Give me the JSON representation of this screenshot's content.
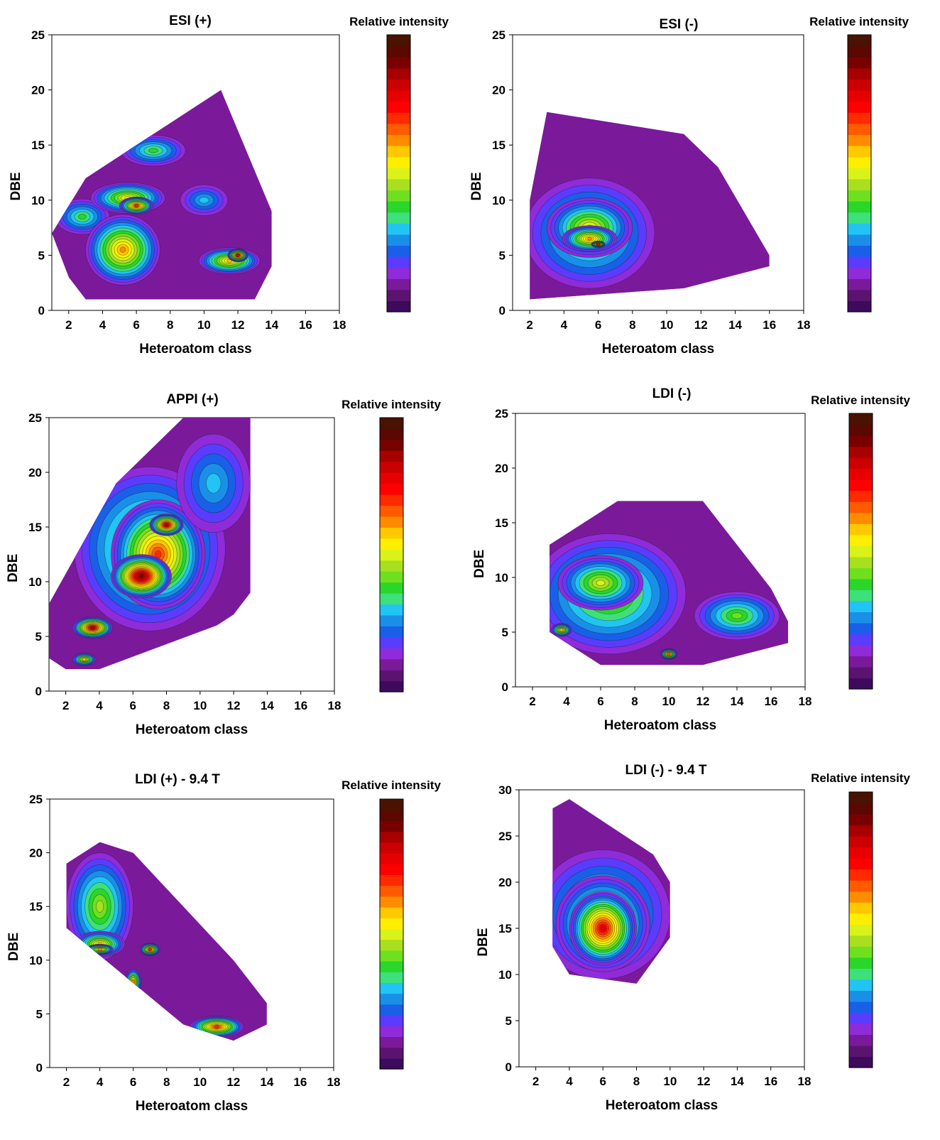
{
  "figure": {
    "colorbar_colors": [
      "#3d0a5c",
      "#5a1470",
      "#7a1a9a",
      "#8f2bd9",
      "#5a3cff",
      "#1a5fe8",
      "#1a8fe8",
      "#21c4f2",
      "#3de07a",
      "#2ad62a",
      "#6ee01f",
      "#a8e01f",
      "#d9f21a",
      "#ffee00",
      "#ffc800",
      "#ff8c00",
      "#ff5a00",
      "#ff2a00",
      "#ff0000",
      "#e80000",
      "#cc0000",
      "#a80000",
      "#7a0000",
      "#5a0800",
      "#4a1200"
    ]
  },
  "chart_data": [
    {
      "type": "heatmap",
      "title": "ESI (+)",
      "xlabel": "Heteroatom class",
      "ylabel": "DBE",
      "colorbar_label": "Relative intensity",
      "xlim": [
        1,
        18
      ],
      "ylim": [
        0,
        25
      ],
      "xticks": [
        "2",
        "4",
        "6",
        "8",
        "10",
        "12",
        "14",
        "16",
        "18"
      ],
      "yticks": [
        "0",
        "5",
        "10",
        "15",
        "20",
        "25"
      ],
      "region": [
        [
          1,
          7
        ],
        [
          3,
          12
        ],
        [
          7,
          16
        ],
        [
          11,
          20
        ],
        [
          14,
          9
        ],
        [
          14,
          4
        ],
        [
          13,
          1
        ],
        [
          3,
          1
        ],
        [
          2,
          3
        ]
      ],
      "blobs": [
        {
          "x": 2.8,
          "y": 8.5,
          "rx": 1.6,
          "ry": 1.6,
          "peak": 9
        },
        {
          "x": 5.2,
          "y": 5.5,
          "rx": 2.2,
          "ry": 3.2,
          "peak": 15
        },
        {
          "x": 5.5,
          "y": 10.2,
          "rx": 2.2,
          "ry": 1.4,
          "peak": 13
        },
        {
          "x": 6.0,
          "y": 9.5,
          "rx": 1.0,
          "ry": 0.8,
          "peak": 17
        },
        {
          "x": 7.0,
          "y": 14.5,
          "rx": 1.9,
          "ry": 1.4,
          "peak": 9
        },
        {
          "x": 10.0,
          "y": 10.0,
          "rx": 1.4,
          "ry": 1.4,
          "peak": 7
        },
        {
          "x": 11.5,
          "y": 4.5,
          "rx": 1.8,
          "ry": 1.2,
          "peak": 14
        },
        {
          "x": 12.0,
          "y": 5.0,
          "rx": 0.6,
          "ry": 0.6,
          "peak": 19
        }
      ]
    },
    {
      "type": "heatmap",
      "title": "ESI (-)",
      "xlabel": "Heteroatom class",
      "ylabel": "DBE",
      "colorbar_label": "Relative intensity",
      "xlim": [
        1,
        18
      ],
      "ylim": [
        0,
        25
      ],
      "xticks": [
        "2",
        "4",
        "6",
        "8",
        "10",
        "12",
        "14",
        "16",
        "18"
      ],
      "yticks": [
        "0",
        "5",
        "10",
        "15",
        "20",
        "25"
      ],
      "region": [
        [
          2,
          10
        ],
        [
          3,
          18
        ],
        [
          11,
          16
        ],
        [
          13,
          13
        ],
        [
          16,
          5
        ],
        [
          16,
          4
        ],
        [
          11,
          2
        ],
        [
          2,
          1
        ]
      ],
      "blobs": [
        {
          "x": 5.5,
          "y": 7.0,
          "rx": 3.8,
          "ry": 5.0,
          "peak": 10
        },
        {
          "x": 5.5,
          "y": 7.5,
          "rx": 2.5,
          "ry": 2.7,
          "peak": 13
        },
        {
          "x": 5.5,
          "y": 6.5,
          "rx": 1.6,
          "ry": 1.2,
          "peak": 15
        },
        {
          "x": 6.0,
          "y": 6.0,
          "rx": 0.4,
          "ry": 0.3,
          "peak": 19
        }
      ]
    },
    {
      "type": "heatmap",
      "title": "APPI (+)",
      "xlabel": "Heteroatom class",
      "ylabel": "DBE",
      "colorbar_label": "Relative intensity",
      "xlim": [
        1,
        18
      ],
      "ylim": [
        0,
        25
      ],
      "xticks": [
        "2",
        "4",
        "6",
        "8",
        "10",
        "12",
        "14",
        "16",
        "18"
      ],
      "yticks": [
        "0",
        "5",
        "10",
        "15",
        "20",
        "25"
      ],
      "region": [
        [
          1,
          8
        ],
        [
          5,
          19
        ],
        [
          9,
          25
        ],
        [
          13,
          25
        ],
        [
          13,
          9
        ],
        [
          12,
          7
        ],
        [
          11,
          6
        ],
        [
          4,
          2
        ],
        [
          2,
          2
        ],
        [
          1,
          3
        ]
      ],
      "blobs": [
        {
          "x": 7.0,
          "y": 13.0,
          "rx": 4.5,
          "ry": 7.5,
          "peak": 12
        },
        {
          "x": 7.5,
          "y": 12.5,
          "rx": 2.8,
          "ry": 5.0,
          "peak": 17
        },
        {
          "x": 6.5,
          "y": 10.5,
          "rx": 1.8,
          "ry": 2.0,
          "peak": 22
        },
        {
          "x": 8.0,
          "y": 15.2,
          "rx": 1.0,
          "ry": 1.0,
          "peak": 20
        },
        {
          "x": 3.6,
          "y": 5.8,
          "rx": 1.2,
          "ry": 1.0,
          "peak": 20
        },
        {
          "x": 3.1,
          "y": 2.9,
          "rx": 0.7,
          "ry": 0.6,
          "peak": 14
        },
        {
          "x": 10.8,
          "y": 19.0,
          "rx": 2.2,
          "ry": 4.5,
          "peak": 7
        }
      ]
    },
    {
      "type": "heatmap",
      "title": "LDI (-)",
      "xlabel": "Heteroatom class",
      "ylabel": "DBE",
      "colorbar_label": "Relative intensity",
      "xlim": [
        1,
        18
      ],
      "ylim": [
        0,
        25
      ],
      "xticks": [
        "2",
        "4",
        "6",
        "8",
        "10",
        "12",
        "14",
        "16",
        "18"
      ],
      "yticks": [
        "0",
        "5",
        "10",
        "15",
        "20",
        "25"
      ],
      "region": [
        [
          3,
          13
        ],
        [
          7,
          17
        ],
        [
          12,
          17
        ],
        [
          16,
          9
        ],
        [
          17,
          6
        ],
        [
          17,
          4
        ],
        [
          12,
          2
        ],
        [
          6,
          2
        ],
        [
          3,
          5
        ]
      ],
      "blobs": [
        {
          "x": 6.5,
          "y": 8.5,
          "rx": 4.5,
          "ry": 5.5,
          "peak": 11
        },
        {
          "x": 6.0,
          "y": 9.5,
          "rx": 2.5,
          "ry": 2.5,
          "peak": 12
        },
        {
          "x": 3.7,
          "y": 5.2,
          "rx": 0.6,
          "ry": 0.6,
          "peak": 14
        },
        {
          "x": 10.0,
          "y": 3.0,
          "rx": 0.5,
          "ry": 0.5,
          "peak": 16
        },
        {
          "x": 14.0,
          "y": 6.5,
          "rx": 2.5,
          "ry": 2.2,
          "peak": 10
        }
      ]
    },
    {
      "type": "heatmap",
      "title": "LDI (+) - 9.4 T",
      "xlabel": "Heteroatom class",
      "ylabel": "DBE",
      "colorbar_label": "Relative intensity",
      "xlim": [
        1,
        18
      ],
      "ylim": [
        0,
        25
      ],
      "xticks": [
        "2",
        "4",
        "6",
        "8",
        "10",
        "12",
        "14",
        "16",
        "18"
      ],
      "yticks": [
        "0",
        "5",
        "10",
        "15",
        "20",
        "25"
      ],
      "region": [
        [
          2,
          19
        ],
        [
          4,
          21
        ],
        [
          6,
          20
        ],
        [
          12,
          10
        ],
        [
          14,
          6
        ],
        [
          14,
          4
        ],
        [
          12,
          2.5
        ],
        [
          9,
          4
        ],
        [
          2,
          13
        ]
      ],
      "blobs": [
        {
          "x": 4.0,
          "y": 15.0,
          "rx": 2.0,
          "ry": 5.0,
          "peak": 11
        },
        {
          "x": 4.0,
          "y": 11.5,
          "rx": 1.5,
          "ry": 1.2,
          "peak": 14
        },
        {
          "x": 4.0,
          "y": 11.0,
          "rx": 0.8,
          "ry": 0.5,
          "peak": 15
        },
        {
          "x": 7.0,
          "y": 11.0,
          "rx": 0.6,
          "ry": 0.6,
          "peak": 17
        },
        {
          "x": 6.0,
          "y": 8.0,
          "rx": 0.5,
          "ry": 1.2,
          "peak": 15
        },
        {
          "x": 11.0,
          "y": 3.8,
          "rx": 1.6,
          "ry": 1.0,
          "peak": 17
        }
      ]
    },
    {
      "type": "heatmap",
      "title": "LDI (-) - 9.4 T",
      "xlabel": "Heteroatom class",
      "ylabel": "DBE",
      "colorbar_label": "Relative intensity",
      "xlim": [
        1,
        18
      ],
      "ylim": [
        0,
        30
      ],
      "xticks": [
        "2",
        "4",
        "6",
        "8",
        "10",
        "12",
        "14",
        "16",
        "18"
      ],
      "yticks": [
        "0",
        "5",
        "10",
        "15",
        "20",
        "25",
        "30"
      ],
      "region": [
        [
          3,
          28
        ],
        [
          4,
          29
        ],
        [
          9,
          23
        ],
        [
          10,
          20
        ],
        [
          10,
          14
        ],
        [
          8,
          9
        ],
        [
          4,
          10
        ],
        [
          3,
          13
        ]
      ],
      "blobs": [
        {
          "x": 6.0,
          "y": 16.5,
          "rx": 4.0,
          "ry": 7.0,
          "peak": 10
        },
        {
          "x": 6.0,
          "y": 15.5,
          "rx": 2.8,
          "ry": 5.2,
          "peak": 15
        },
        {
          "x": 6.0,
          "y": 15.0,
          "rx": 2.0,
          "ry": 4.0,
          "peak": 19
        }
      ]
    }
  ]
}
